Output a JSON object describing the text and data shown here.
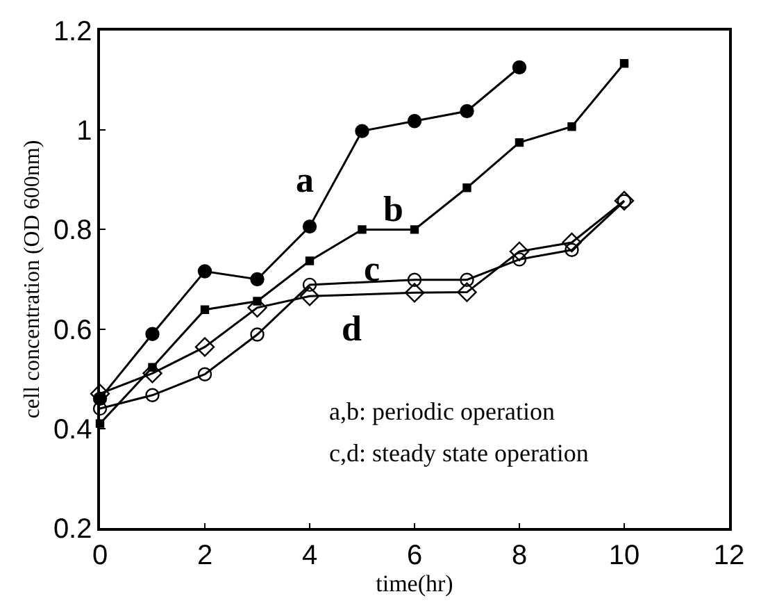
{
  "chart_data": {
    "type": "line",
    "xlabel": "time(hr)",
    "ylabel": "cell concentration (OD 600nm)",
    "xlim": [
      0,
      12
    ],
    "xticks": [
      0,
      2,
      4,
      6,
      8,
      10,
      12
    ],
    "ylim": [
      0.2,
      1.2
    ],
    "yticks": [
      0.2,
      0.4,
      0.6,
      0.8,
      1,
      1.2
    ],
    "legend": false,
    "series": [
      {
        "name": "a",
        "color": "#000000",
        "marker": "circle",
        "x": [
          0,
          1,
          2,
          3,
          4,
          5,
          6,
          7,
          8
        ],
        "values": [
          0.46,
          0.59,
          0.716,
          0.7,
          0.806,
          0.998,
          1.018,
          1.038,
          1.126
        ]
      },
      {
        "name": "b",
        "color": "#000000",
        "marker": "square",
        "x": [
          0,
          1,
          2,
          3,
          4,
          5,
          6,
          7,
          8,
          9,
          10
        ],
        "values": [
          0.41,
          0.523,
          0.639,
          0.656,
          0.737,
          0.8,
          0.8,
          0.884,
          0.975,
          1.007,
          1.134
        ]
      },
      {
        "name": "c",
        "color": "#000000",
        "marker": "circle",
        "x": [
          0,
          1,
          2,
          3,
          4,
          6,
          7,
          8,
          9,
          10
        ],
        "values": [
          0.44,
          0.467,
          0.509,
          0.589,
          0.689,
          0.699,
          0.699,
          0.74,
          0.759,
          0.857
        ]
      },
      {
        "name": "d",
        "color": "#000000",
        "marker": "diamond",
        "x": [
          0,
          1,
          2,
          3,
          4,
          6,
          7,
          8,
          9,
          10
        ],
        "values": [
          0.47,
          0.511,
          0.564,
          0.643,
          0.666,
          0.673,
          0.674,
          0.756,
          0.774,
          0.858
        ]
      }
    ],
    "annotations": [
      "a,b: periodic operation",
      "c,d: steady state operation"
    ]
  }
}
